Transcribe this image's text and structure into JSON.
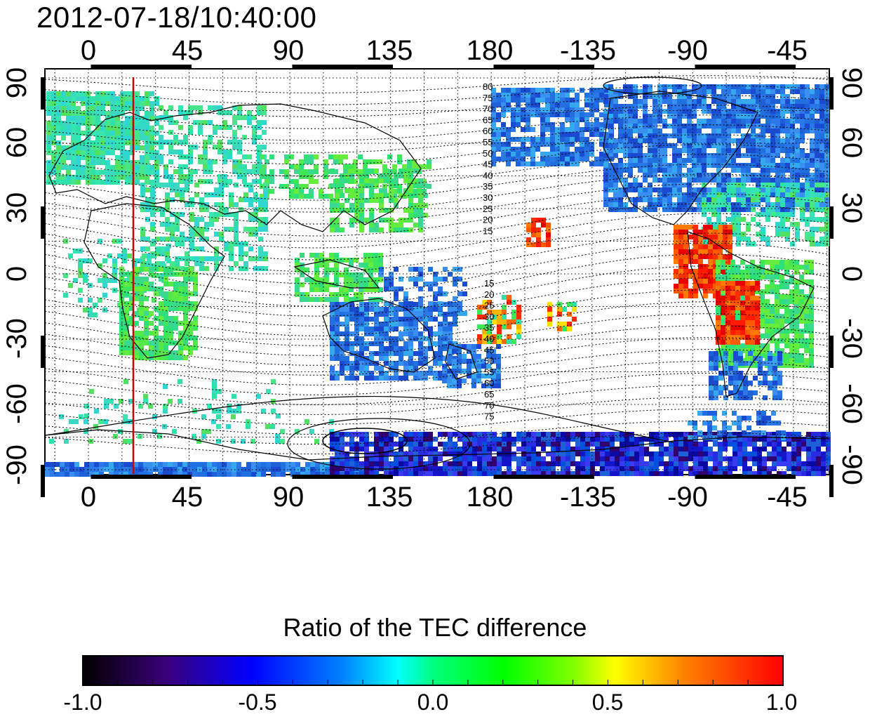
{
  "title": "2012-07-18/10:40:00",
  "axes": {
    "top_ticks": [
      "0",
      "45",
      "90",
      "135",
      "180",
      "-135",
      "-90",
      "-45"
    ],
    "bottom_ticks": [
      "0",
      "45",
      "90",
      "135",
      "180",
      "-135",
      "-90",
      "-45"
    ],
    "left_ticks": [
      "90",
      "60",
      "30",
      "0",
      "-30",
      "-60",
      "-90"
    ],
    "right_ticks": [
      "90",
      "60",
      "30",
      "0",
      "-30",
      "-60",
      "-90"
    ]
  },
  "contour_labels_north": [
    "80",
    "75",
    "70",
    "65",
    "60",
    "55",
    "50",
    "45",
    "40",
    "35",
    "30",
    "25",
    "20",
    "15"
  ],
  "contour_labels_south": [
    "15",
    "20",
    "25",
    "30",
    "35",
    "40",
    "45",
    "50",
    "55",
    "60",
    "65",
    "70",
    "75"
  ],
  "colorbar": {
    "title": "Ratio of the TEC difference",
    "ticks": [
      "-1.0",
      "-0.5",
      "0.0",
      "0.5",
      "1.0"
    ],
    "range": [
      -1.0,
      1.0
    ],
    "colors": [
      "#000000",
      "#3a007a",
      "#0000ff",
      "#0080ff",
      "#00ffff",
      "#00ff80",
      "#00ff00",
      "#80ff00",
      "#ffff00",
      "#ff8000",
      "#ff0000"
    ]
  },
  "marker_line": {
    "longitude": 20,
    "color": "#cc0000"
  },
  "colors": {
    "blue": "#1f5fd8",
    "cyan_green": "#2fe0a8",
    "green": "#3ee65a",
    "red": "#ff1a00",
    "deep_blue": "#1414c8",
    "dark_purple": "#32006e"
  }
}
